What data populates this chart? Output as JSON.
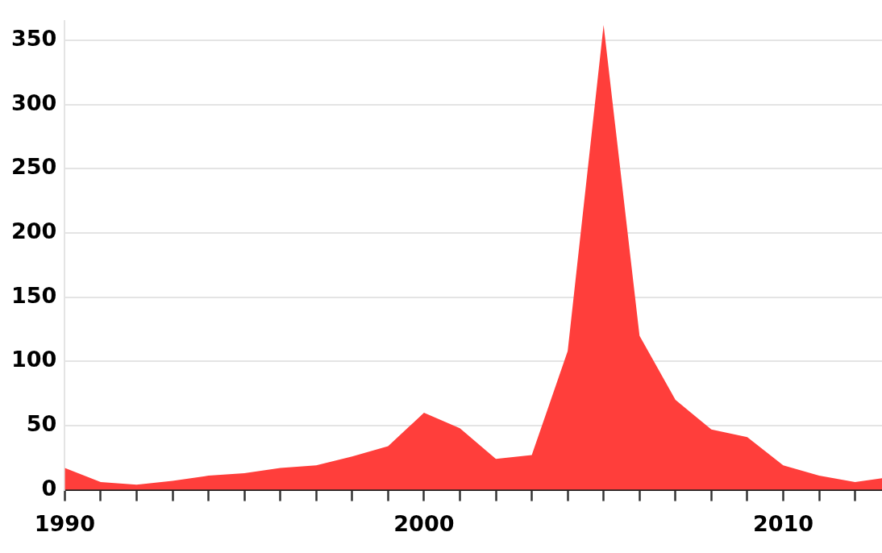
{
  "chart_data": {
    "type": "area",
    "x": [
      1990,
      1991,
      1992,
      1993,
      1994,
      1995,
      1996,
      1997,
      1998,
      1999,
      2000,
      2001,
      2002,
      2003,
      2004,
      2005,
      2006,
      2007,
      2008,
      2009,
      2010,
      2011,
      2012,
      2012.75
    ],
    "series": [
      {
        "color": "#ff3e3b",
        "values": [
          17,
          6,
          4,
          7,
          11,
          13,
          17,
          19,
          26,
          34,
          60,
          48,
          24,
          27,
          108,
          362,
          120,
          70,
          47,
          41,
          19,
          11,
          6,
          9
        ]
      }
    ],
    "xlim": [
      1990,
      2012.75
    ],
    "xticks": [
      1990,
      {
        "value": 1991,
        "label": null
      },
      {
        "value": 1992,
        "label": null
      },
      {
        "value": 1993,
        "label": null
      },
      {
        "value": 1994,
        "label": null
      },
      {
        "value": 1995,
        "label": null
      },
      {
        "value": 1996,
        "label": null
      },
      {
        "value": 1997,
        "label": null
      },
      {
        "value": 1998,
        "label": null
      },
      {
        "value": 1999,
        "label": null
      },
      2000,
      {
        "value": 2001,
        "label": null
      },
      {
        "value": 2002,
        "label": null
      },
      {
        "value": 2003,
        "label": null
      },
      {
        "value": 2004,
        "label": null
      },
      {
        "value": 2005,
        "label": null
      },
      {
        "value": 2006,
        "label": null
      },
      {
        "value": 2007,
        "label": null
      },
      {
        "value": 2008,
        "label": null
      },
      {
        "value": 2009,
        "label": null
      },
      2010,
      {
        "value": 2011,
        "label": null
      },
      {
        "value": 2012,
        "label": null
      }
    ],
    "ylim": [
      0,
      365
    ],
    "yticks": [
      0,
      50,
      100,
      150,
      200,
      250,
      300,
      350
    ],
    "grid": "y",
    "legend": false,
    "marker": "none"
  }
}
